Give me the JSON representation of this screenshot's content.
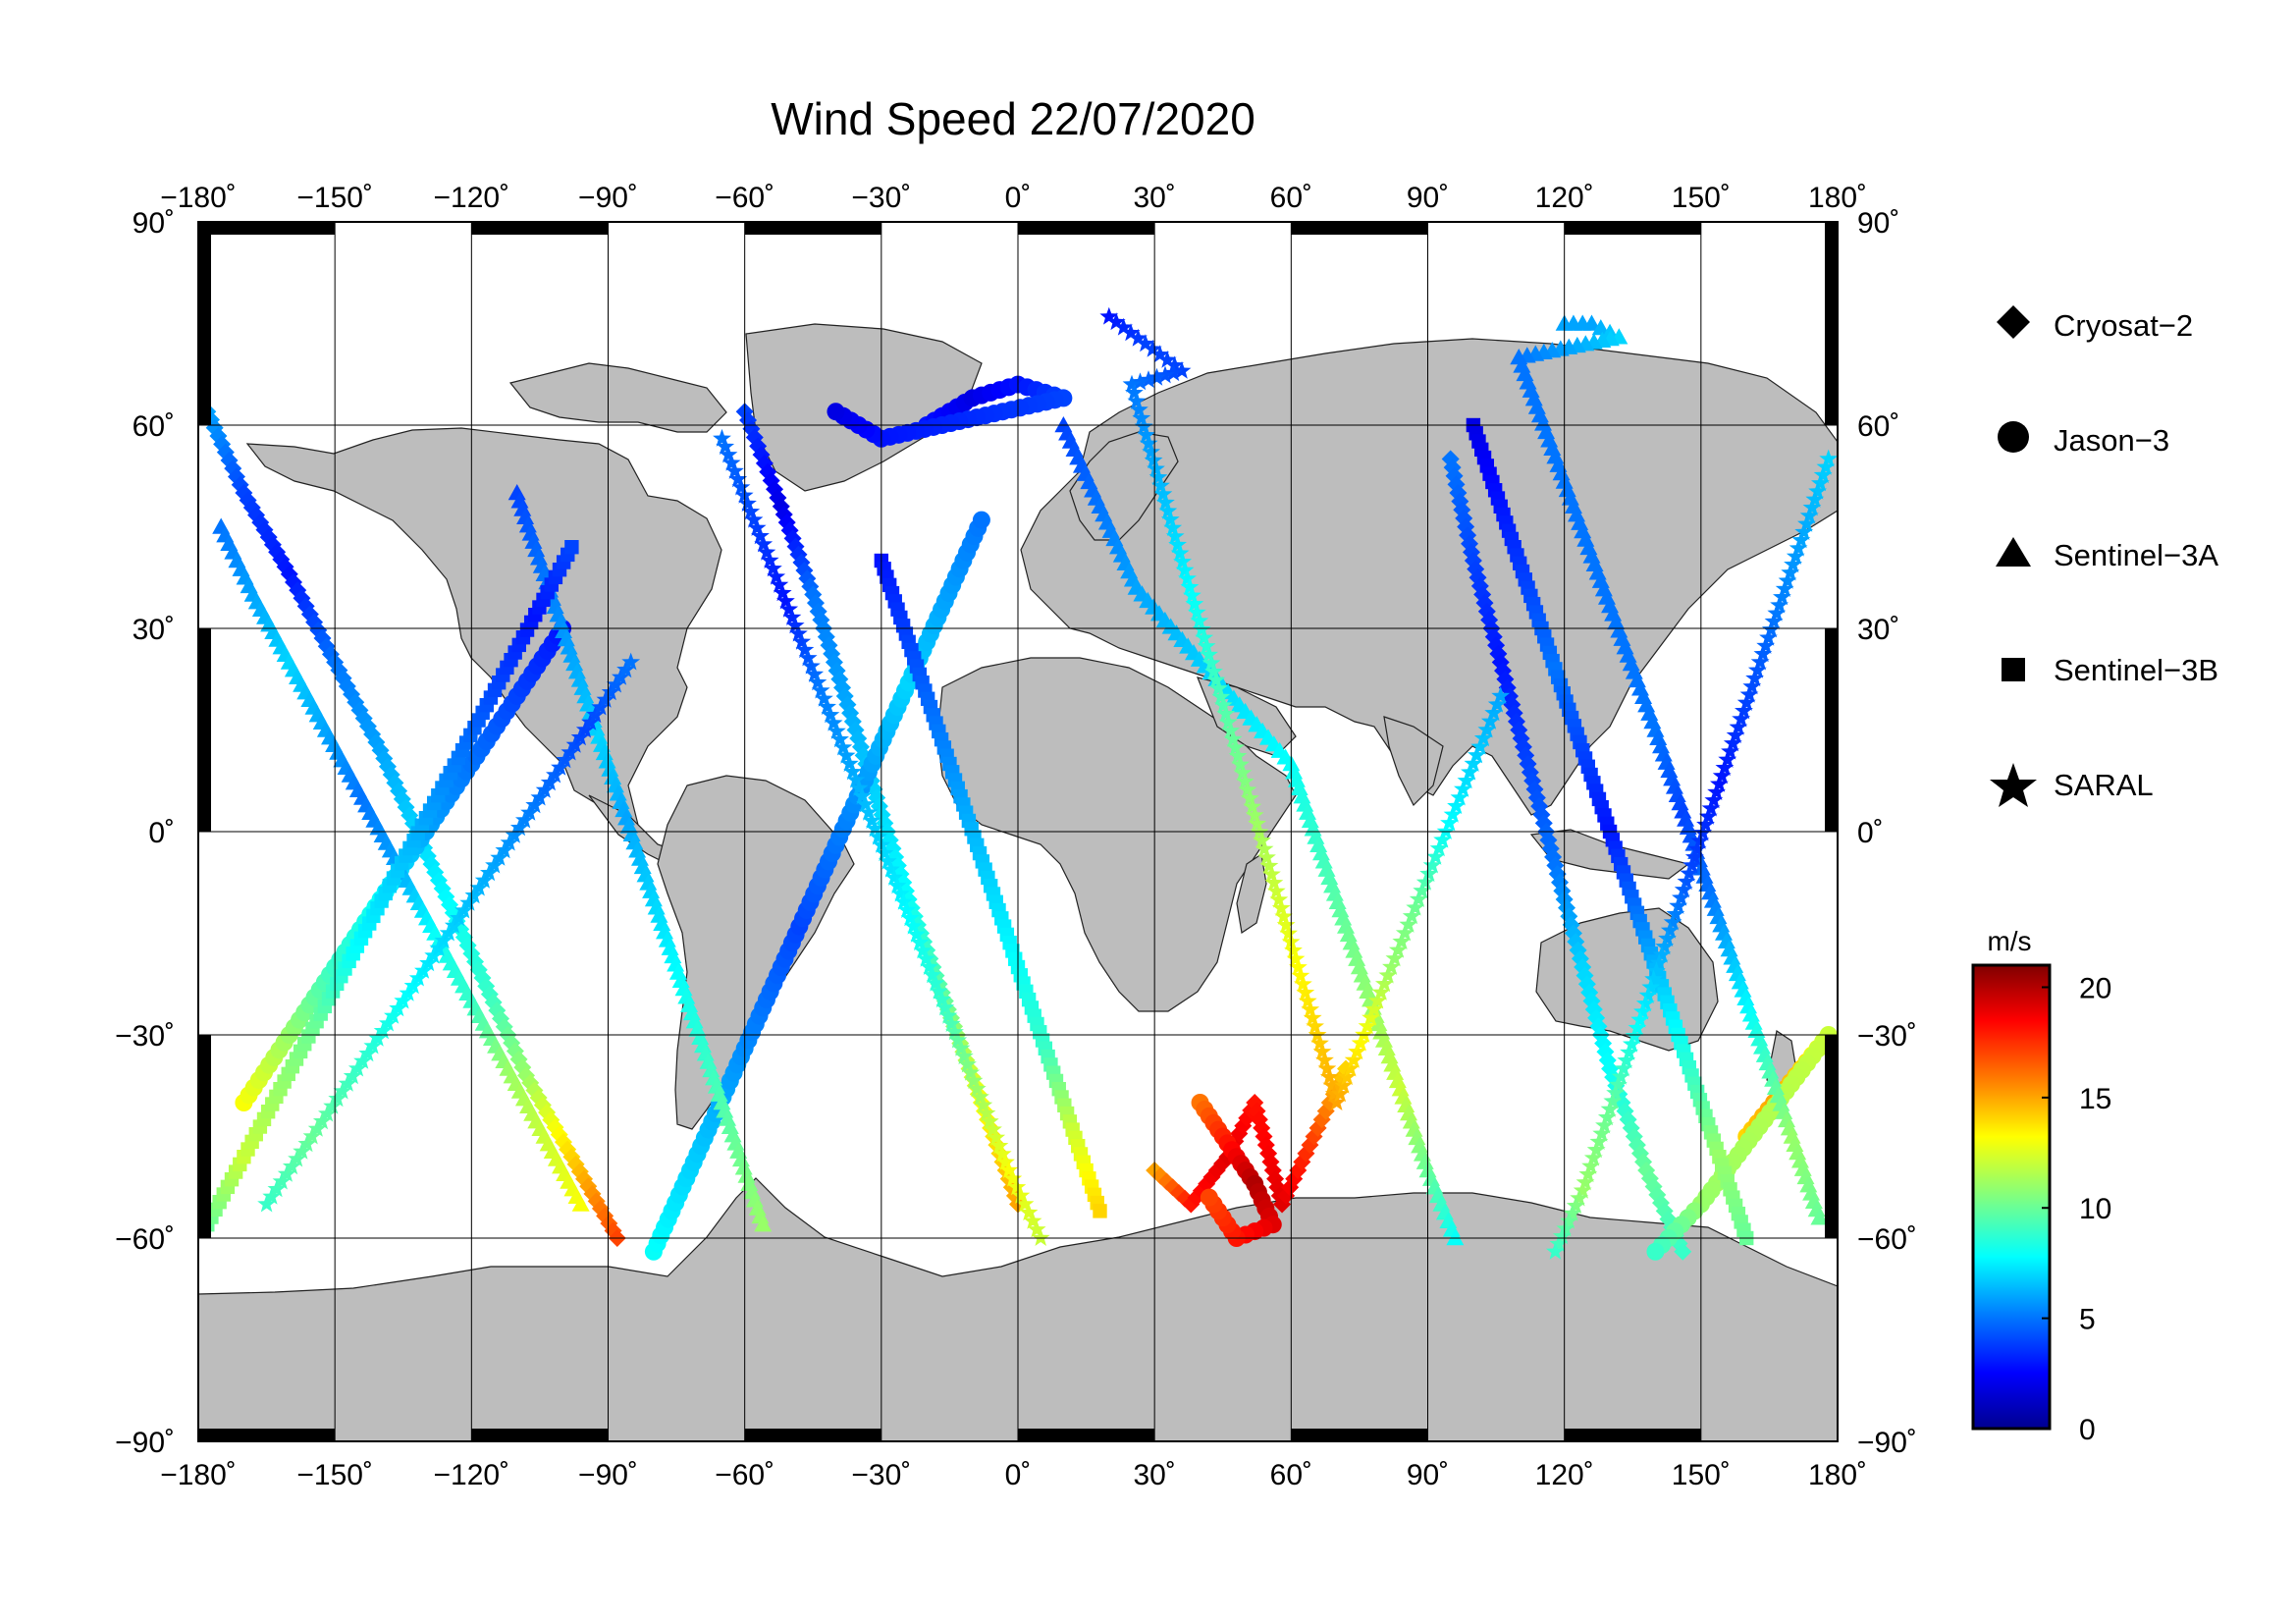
{
  "title": "Wind Speed 22/07/2020",
  "longitude_ticks": [
    "−180˚",
    "−150˚",
    "−120˚",
    "−90˚",
    "−60˚",
    "−30˚",
    "0˚",
    "30˚",
    "60˚",
    "90˚",
    "120˚",
    "150˚",
    "180˚"
  ],
  "latitude_ticks": [
    "90˚",
    "60˚",
    "30˚",
    "0˚",
    "−30˚",
    "−60˚",
    "−90˚"
  ],
  "legend": [
    {
      "name": "Cryosat−2",
      "symbol": "diamond"
    },
    {
      "name": "Jason−3",
      "symbol": "circle"
    },
    {
      "name": "Sentinel−3A",
      "symbol": "triangle"
    },
    {
      "name": "Sentinel−3B",
      "symbol": "square"
    },
    {
      "name": "SARAL",
      "symbol": "star"
    }
  ],
  "colorbar": {
    "unit": "m/s",
    "ticks": [
      "20",
      "15",
      "10",
      "5",
      "0"
    ],
    "range": [
      0,
      21
    ],
    "colormap": [
      "#00008f",
      "#0000ff",
      "#0080ff",
      "#00ffff",
      "#80ff80",
      "#ffff00",
      "#ff8000",
      "#ff0000",
      "#800000"
    ]
  },
  "colors": {
    "land": "#bdbdbd",
    "ocean": "#ffffff",
    "frame": "#000000"
  },
  "chart_data": {
    "type": "scatter",
    "title": "Wind Speed 22/07/2020",
    "xlim": [
      -180,
      180
    ],
    "ylim": [
      -90,
      90
    ],
    "grid": true,
    "legend_position": "right",
    "colorbar_label": "m/s",
    "color_range": [
      0,
      21
    ],
    "series": [
      {
        "name": "Cryosat−2",
        "marker": "diamond"
      },
      {
        "name": "Jason−3",
        "marker": "circle"
      },
      {
        "name": "Sentinel−3A",
        "marker": "triangle"
      },
      {
        "name": "Sentinel−3B",
        "marker": "square"
      },
      {
        "name": "SARAL",
        "marker": "star"
      }
    ],
    "tracks": [
      {
        "marker": "diamond",
        "points": [
          [
            -178,
            62,
            6
          ],
          [
            -170,
            50,
            4
          ],
          [
            -160,
            38,
            3
          ],
          [
            -150,
            25,
            5
          ],
          [
            -140,
            12,
            6
          ],
          [
            -132,
            0,
            7
          ],
          [
            -124,
            -12,
            8
          ],
          [
            -116,
            -24,
            9
          ],
          [
            -108,
            -36,
            11
          ],
          [
            -98,
            -48,
            14
          ],
          [
            -88,
            -60,
            17
          ]
        ]
      },
      {
        "marker": "diamond",
        "points": [
          [
            -60,
            62,
            4
          ],
          [
            -52,
            48,
            2
          ],
          [
            -45,
            35,
            5
          ],
          [
            -38,
            20,
            6
          ],
          [
            -31,
            5,
            7
          ],
          [
            -24,
            -10,
            8
          ],
          [
            -16,
            -25,
            10
          ],
          [
            -8,
            -40,
            13
          ],
          [
            0,
            -55,
            15
          ]
        ]
      },
      {
        "marker": "diamond",
        "points": [
          [
            30,
            -50,
            15
          ],
          [
            38,
            -55,
            18
          ],
          [
            46,
            -48,
            19
          ],
          [
            52,
            -40,
            18
          ],
          [
            58,
            -55,
            19
          ],
          [
            65,
            -45,
            17
          ],
          [
            72,
            -35,
            14
          ]
        ]
      },
      {
        "marker": "diamond",
        "points": [
          [
            95,
            55,
            5
          ],
          [
            100,
            40,
            4
          ],
          [
            106,
            25,
            3
          ],
          [
            112,
            10,
            4
          ],
          [
            118,
            -5,
            5
          ],
          [
            124,
            -20,
            7
          ],
          [
            130,
            -35,
            8
          ],
          [
            138,
            -50,
            10
          ],
          [
            146,
            -62,
            9
          ]
        ]
      },
      {
        "marker": "circle",
        "points": [
          [
            -170,
            -40,
            13
          ],
          [
            -160,
            -30,
            11
          ],
          [
            -150,
            -20,
            9
          ],
          [
            -140,
            -10,
            8
          ],
          [
            -130,
            0,
            6
          ],
          [
            -120,
            10,
            5
          ],
          [
            -110,
            20,
            4
          ],
          [
            -100,
            30,
            3
          ]
        ]
      },
      {
        "marker": "circle",
        "points": [
          [
            -80,
            -62,
            8
          ],
          [
            -72,
            -50,
            7
          ],
          [
            -64,
            -38,
            6
          ],
          [
            -56,
            -26,
            5
          ],
          [
            -48,
            -14,
            4
          ],
          [
            -40,
            -2,
            5
          ],
          [
            -32,
            10,
            6
          ],
          [
            -24,
            22,
            7
          ],
          [
            -16,
            34,
            6
          ],
          [
            -8,
            46,
            5
          ]
        ]
      },
      {
        "marker": "circle",
        "points": [
          [
            40,
            -40,
            16
          ],
          [
            46,
            -46,
            18
          ],
          [
            52,
            -52,
            20
          ],
          [
            56,
            -58,
            19
          ],
          [
            48,
            -60,
            18
          ],
          [
            42,
            -54,
            17
          ]
        ]
      },
      {
        "marker": "circle",
        "points": [
          [
            -20,
            60,
            3
          ],
          [
            -10,
            64,
            2
          ],
          [
            0,
            66,
            3
          ],
          [
            10,
            64,
            4
          ],
          [
            -30,
            58,
            3
          ],
          [
            -40,
            62,
            2
          ]
        ]
      },
      {
        "marker": "circle",
        "points": [
          [
            160,
            -45,
            14
          ],
          [
            166,
            -40,
            15
          ],
          [
            172,
            -35,
            14
          ],
          [
            178,
            -30,
            12
          ],
          [
            150,
            -55,
            11
          ],
          [
            140,
            -62,
            9
          ]
        ]
      },
      {
        "marker": "triangle",
        "points": [
          [
            -175,
            45,
            5
          ],
          [
            -168,
            35,
            6
          ],
          [
            -160,
            25,
            7
          ],
          [
            -152,
            15,
            6
          ],
          [
            -144,
            5,
            5
          ],
          [
            -136,
            -5,
            6
          ],
          [
            -128,
            -15,
            8
          ],
          [
            -120,
            -25,
            9
          ],
          [
            -112,
            -35,
            11
          ],
          [
            -104,
            -45,
            12
          ],
          [
            -96,
            -55,
            13
          ]
        ]
      },
      {
        "marker": "triangle",
        "points": [
          [
            -110,
            50,
            4
          ],
          [
            -104,
            38,
            5
          ],
          [
            -98,
            26,
            6
          ],
          [
            -92,
            14,
            7
          ],
          [
            -86,
            2,
            6
          ],
          [
            -80,
            -10,
            7
          ],
          [
            -74,
            -22,
            8
          ],
          [
            -68,
            -34,
            9
          ],
          [
            -62,
            -46,
            10
          ],
          [
            -56,
            -58,
            11
          ]
        ]
      },
      {
        "marker": "triangle",
        "points": [
          [
            10,
            60,
            4
          ],
          [
            18,
            48,
            5
          ],
          [
            26,
            36,
            6
          ],
          [
            60,
            10,
            8
          ],
          [
            66,
            -2,
            9
          ],
          [
            72,
            -14,
            10
          ],
          [
            78,
            -26,
            11
          ],
          [
            84,
            -38,
            12
          ],
          [
            90,
            -50,
            10
          ],
          [
            96,
            -60,
            8
          ]
        ]
      },
      {
        "marker": "triangle",
        "points": [
          [
            120,
            75,
            6
          ],
          [
            126,
            75,
            6
          ],
          [
            132,
            73,
            7
          ],
          [
            110,
            70,
            5
          ],
          [
            140,
            15,
            5
          ],
          [
            146,
            3,
            4
          ],
          [
            152,
            -9,
            5
          ],
          [
            158,
            -21,
            7
          ],
          [
            164,
            -33,
            9
          ],
          [
            170,
            -45,
            11
          ],
          [
            176,
            -57,
            10
          ]
        ]
      },
      {
        "marker": "square",
        "points": [
          [
            -178,
            -58,
            10
          ],
          [
            -170,
            -48,
            12
          ],
          [
            -162,
            -38,
            11
          ],
          [
            -154,
            -28,
            10
          ],
          [
            -146,
            -18,
            8
          ],
          [
            -138,
            -8,
            7
          ],
          [
            -130,
            2,
            6
          ],
          [
            -122,
            12,
            5
          ],
          [
            -114,
            22,
            4
          ],
          [
            -106,
            32,
            3
          ],
          [
            -98,
            42,
            4
          ]
        ]
      },
      {
        "marker": "square",
        "points": [
          [
            -30,
            40,
            3
          ],
          [
            -24,
            28,
            4
          ],
          [
            -18,
            16,
            5
          ],
          [
            -12,
            4,
            6
          ],
          [
            -6,
            -8,
            7
          ],
          [
            0,
            -20,
            8
          ],
          [
            6,
            -32,
            9
          ],
          [
            12,
            -44,
            12
          ],
          [
            18,
            -56,
            14
          ]
        ]
      },
      {
        "marker": "square",
        "points": [
          [
            100,
            60,
            2
          ],
          [
            106,
            48,
            3
          ],
          [
            112,
            36,
            4
          ],
          [
            118,
            24,
            5
          ],
          [
            124,
            12,
            4
          ],
          [
            130,
            0,
            3
          ],
          [
            136,
            -12,
            5
          ],
          [
            142,
            -24,
            7
          ],
          [
            148,
            -36,
            9
          ],
          [
            154,
            -48,
            11
          ],
          [
            160,
            -60,
            10
          ]
        ]
      },
      {
        "marker": "star",
        "points": [
          [
            -165,
            -55,
            9
          ],
          [
            -155,
            -45,
            10
          ],
          [
            -145,
            -35,
            9
          ],
          [
            -135,
            -25,
            8
          ],
          [
            -125,
            -15,
            7
          ],
          [
            -115,
            -5,
            6
          ],
          [
            -105,
            5,
            5
          ],
          [
            -95,
            15,
            4
          ],
          [
            -85,
            25,
            5
          ]
        ]
      },
      {
        "marker": "star",
        "points": [
          [
            -65,
            58,
            5
          ],
          [
            -58,
            46,
            4
          ],
          [
            -51,
            34,
            3
          ],
          [
            -44,
            22,
            5
          ],
          [
            -37,
            10,
            6
          ],
          [
            -30,
            -2,
            7
          ],
          [
            -23,
            -14,
            8
          ],
          [
            -16,
            -26,
            9
          ],
          [
            -9,
            -38,
            11
          ],
          [
            -2,
            -50,
            13
          ],
          [
            5,
            -60,
            12
          ]
        ]
      },
      {
        "marker": "star",
        "points": [
          [
            20,
            76,
            3
          ],
          [
            28,
            72,
            4
          ],
          [
            36,
            68,
            4
          ],
          [
            25,
            66,
            5
          ],
          [
            70,
            -40,
            15
          ],
          [
            76,
            -30,
            13
          ],
          [
            82,
            -20,
            11
          ],
          [
            88,
            -10,
            10
          ],
          [
            94,
            0,
            8
          ],
          [
            100,
            10,
            7
          ],
          [
            106,
            20,
            6
          ]
        ]
      },
      {
        "marker": "star",
        "points": [
          [
            178,
            55,
            7
          ],
          [
            172,
            43,
            6
          ],
          [
            166,
            31,
            5
          ],
          [
            160,
            19,
            4
          ],
          [
            154,
            7,
            3
          ],
          [
            148,
            -5,
            4
          ],
          [
            142,
            -17,
            6
          ],
          [
            136,
            -29,
            8
          ],
          [
            130,
            -41,
            10
          ],
          [
            124,
            -53,
            11
          ],
          [
            118,
            -62,
            9
          ]
        ]
      }
    ]
  }
}
